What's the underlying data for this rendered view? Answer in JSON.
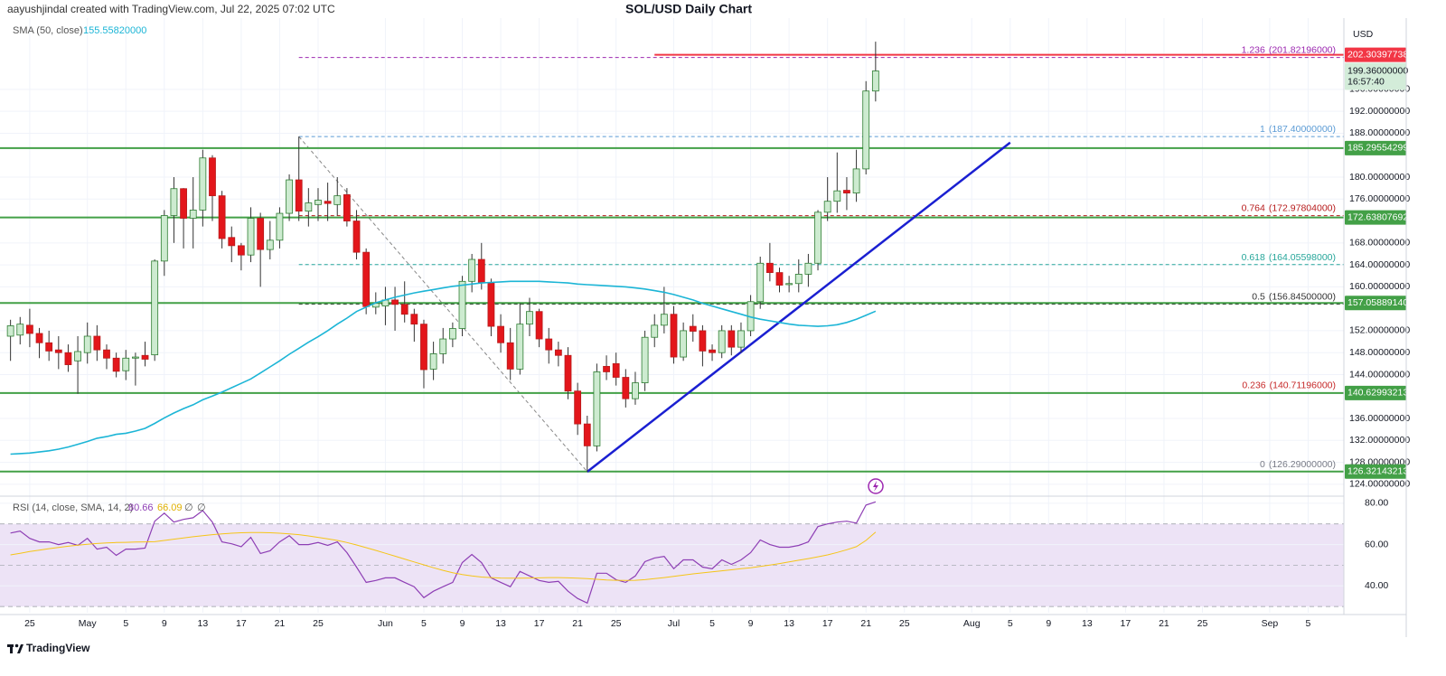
{
  "chart_data": [
    {
      "type": "candlestick",
      "title": "SOL/USD Daily Chart",
      "credit": "aayushjindal created with TradingView.com, Jul 22, 2025 07:02 UTC",
      "currency": "USD",
      "brand": "TradingView",
      "x": [
        "04-23",
        "04-24",
        "04-25",
        "04-26",
        "04-27",
        "04-28",
        "04-29",
        "04-30",
        "05-01",
        "05-02",
        "05-03",
        "05-04",
        "05-05",
        "05-06",
        "05-07",
        "05-08",
        "05-09",
        "05-10",
        "05-11",
        "05-12",
        "05-13",
        "05-14",
        "05-15",
        "05-16",
        "05-17",
        "05-18",
        "05-19",
        "05-20",
        "05-21",
        "05-22",
        "05-23",
        "05-24",
        "05-25",
        "05-26",
        "05-27",
        "05-28",
        "05-29",
        "05-30",
        "05-31",
        "06-01",
        "06-02",
        "06-03",
        "06-04",
        "06-05",
        "06-06",
        "06-07",
        "06-08",
        "06-09",
        "06-10",
        "06-11",
        "06-12",
        "06-13",
        "06-14",
        "06-15",
        "06-16",
        "06-17",
        "06-18",
        "06-19",
        "06-20",
        "06-21",
        "06-22",
        "06-23",
        "06-24",
        "06-25",
        "06-26",
        "06-27",
        "06-28",
        "06-29",
        "06-30",
        "07-01",
        "07-02",
        "07-03",
        "07-04",
        "07-05",
        "07-06",
        "07-07",
        "07-08",
        "07-09",
        "07-10",
        "07-11",
        "07-12",
        "07-13",
        "07-14",
        "07-15",
        "07-16",
        "07-17",
        "07-18",
        "07-19",
        "07-20",
        "07-21",
        "07-22"
      ],
      "open": [
        151.0,
        151.2,
        153.0,
        151.5,
        149.8,
        148.5,
        148.0,
        146.5,
        148.0,
        151.0,
        148.5,
        147.0,
        144.7,
        147.0,
        147.5,
        147.6,
        164.7,
        173.0,
        177.9,
        172.5,
        174.0,
        183.5,
        176.6,
        169.0,
        167.5,
        165.8,
        172.5,
        166.8,
        168.5,
        173.4,
        179.5,
        173.8,
        175.0,
        175.6,
        175.0,
        176.8,
        172.0,
        166.3,
        156.3,
        156.5,
        157.6,
        156.8,
        155.0,
        153.2,
        145.0,
        147.8,
        150.5,
        152.4,
        161.0,
        165.0,
        160.7,
        152.8,
        149.8,
        145.0,
        153.2,
        155.5,
        150.5,
        148.5,
        147.5,
        141.0,
        135.0,
        131.0,
        145.5,
        146.0,
        143.5,
        139.6,
        142.5,
        150.8,
        153.0,
        155.0,
        147.2,
        152.8,
        152.0,
        148.5,
        148.0,
        152.0,
        149.0,
        152.0,
        157.3,
        164.3,
        162.6,
        160.4,
        160.6,
        162.3,
        164.3,
        173.6,
        175.6,
        177.6,
        177.1,
        181.5,
        195.7
      ],
      "high": [
        154.0,
        154.5,
        156.0,
        152.5,
        152.0,
        151.0,
        149.5,
        151.0,
        153.5,
        153.0,
        149.5,
        148.0,
        148.5,
        148.0,
        150.0,
        165.0,
        174.0,
        180.0,
        178.0,
        180.0,
        185.0,
        184.0,
        177.5,
        171.0,
        168.0,
        174.5,
        173.5,
        172.0,
        174.5,
        180.5,
        187.4,
        178.0,
        178.0,
        179.0,
        180.0,
        178.0,
        174.0,
        167.0,
        159.0,
        160.0,
        160.0,
        161.0,
        156.0,
        154.0,
        150.0,
        152.5,
        153.5,
        162.0,
        166.0,
        168.0,
        161.5,
        155.0,
        152.5,
        157.0,
        158.0,
        156.0,
        152.5,
        150.0,
        149.0,
        142.5,
        136.5,
        146.0,
        147.5,
        148.0,
        145.0,
        144.5,
        152.0,
        155.0,
        160.0,
        156.5,
        153.5,
        155.0,
        153.0,
        149.5,
        153.0,
        153.0,
        153.5,
        158.5,
        165.5,
        168.0,
        163.5,
        162.0,
        165.0,
        166.0,
        174.0,
        180.0,
        184.5,
        180.0,
        185.0,
        197.5,
        204.7
      ],
      "low": [
        146.5,
        149.5,
        149.0,
        147.0,
        146.5,
        145.0,
        144.5,
        140.5,
        146.0,
        146.5,
        145.0,
        143.5,
        143.0,
        142.0,
        145.5,
        146.5,
        162.0,
        168.0,
        167.0,
        167.0,
        171.0,
        172.0,
        167.0,
        164.5,
        163.0,
        164.5,
        160.0,
        165.0,
        167.0,
        172.0,
        172.0,
        171.0,
        172.0,
        172.0,
        173.0,
        171.0,
        165.0,
        155.0,
        155.0,
        153.0,
        152.0,
        153.5,
        150.0,
        141.5,
        143.0,
        146.0,
        149.0,
        151.0,
        159.0,
        159.5,
        151.0,
        148.0,
        143.0,
        144.0,
        151.0,
        149.0,
        146.0,
        145.5,
        139.5,
        133.0,
        126.29,
        130.0,
        143.0,
        142.0,
        138.0,
        138.5,
        141.0,
        149.0,
        151.5,
        146.0,
        146.5,
        150.0,
        145.5,
        146.5,
        147.0,
        147.5,
        148.0,
        151.0,
        156.0,
        161.0,
        159.0,
        159.0,
        159.0,
        160.0,
        163.0,
        172.0,
        173.5,
        174.0,
        175.5,
        180.5,
        193.8
      ],
      "close": [
        152.9,
        153.2,
        151.5,
        149.8,
        148.3,
        148.0,
        145.8,
        148.2,
        151.0,
        148.5,
        147.0,
        144.6,
        147.0,
        147.2,
        146.8,
        164.7,
        173.0,
        177.9,
        172.5,
        174.0,
        183.5,
        176.6,
        168.8,
        167.5,
        165.8,
        172.5,
        166.8,
        168.5,
        173.4,
        179.5,
        173.8,
        175.3,
        175.8,
        175.2,
        176.6,
        172.0,
        166.3,
        156.4,
        157.0,
        157.6,
        156.8,
        155.0,
        153.2,
        144.9,
        147.8,
        150.5,
        152.4,
        161.0,
        165.0,
        160.7,
        152.8,
        149.8,
        145.0,
        153.2,
        155.5,
        150.5,
        148.5,
        147.5,
        141.0,
        135.0,
        131.0,
        144.5,
        144.5,
        143.5,
        139.6,
        142.5,
        150.8,
        153.0,
        155.0,
        147.2,
        152.0,
        151.9,
        148.3,
        148.0,
        152.0,
        149.0,
        152.0,
        157.3,
        164.3,
        162.6,
        160.3,
        160.6,
        162.3,
        164.3,
        173.6,
        175.6,
        177.5,
        177.1,
        181.5,
        195.7,
        199.36
      ],
      "up_color": "#cdebd0",
      "up_border": "#2e7d32",
      "down_color": "#e3161b",
      "down_border": "#b71c1c",
      "wick_color": "#333333",
      "sma": {
        "name": "SMA (50, close)",
        "last_label": "155.55820000",
        "color": "#1cb5d6",
        "values": [
          129.5,
          129.6,
          129.7,
          129.9,
          130.1,
          130.4,
          130.8,
          131.3,
          131.8,
          132.4,
          132.7,
          133.1,
          133.3,
          133.7,
          134.2,
          135.1,
          136.1,
          137.0,
          137.8,
          138.5,
          139.4,
          140.1,
          140.8,
          141.6,
          142.4,
          143.2,
          144.3,
          145.4,
          146.5,
          147.7,
          148.8,
          149.9,
          150.9,
          152.0,
          153.2,
          154.3,
          155.5,
          156.3,
          157.1,
          157.6,
          158.1,
          158.5,
          158.9,
          159.2,
          159.5,
          159.8,
          160.1,
          160.3,
          160.5,
          160.7,
          160.8,
          160.9,
          161.0,
          161.0,
          161.0,
          161.0,
          160.9,
          160.8,
          160.7,
          160.5,
          160.4,
          160.3,
          160.2,
          160.1,
          160.0,
          159.8,
          159.6,
          159.3,
          159.0,
          158.6,
          158.1,
          157.6,
          157.0,
          156.5,
          156.0,
          155.5,
          155.0,
          154.5,
          154.1,
          153.8,
          153.5,
          153.2,
          153.0,
          152.9,
          152.8,
          152.9,
          153.1,
          153.5,
          154.1,
          154.8,
          155.5582
        ]
      },
      "xlim": [
        "04-22",
        "09-09"
      ],
      "xticks": [
        {
          "value": "04-25",
          "label": "25"
        },
        {
          "value": "05-01",
          "label": "May"
        },
        {
          "value": "05-05",
          "label": "5"
        },
        {
          "value": "05-09",
          "label": "9"
        },
        {
          "value": "05-13",
          "label": "13"
        },
        {
          "value": "05-17",
          "label": "17"
        },
        {
          "value": "05-21",
          "label": "21"
        },
        {
          "value": "05-25",
          "label": "25"
        },
        {
          "value": "06-01",
          "label": "Jun"
        },
        {
          "value": "06-05",
          "label": "5"
        },
        {
          "value": "06-09",
          "label": "9"
        },
        {
          "value": "06-13",
          "label": "13"
        },
        {
          "value": "06-17",
          "label": "17"
        },
        {
          "value": "06-21",
          "label": "21"
        },
        {
          "value": "06-25",
          "label": "25"
        },
        {
          "value": "07-01",
          "label": "Jul"
        },
        {
          "value": "07-05",
          "label": "5"
        },
        {
          "value": "07-09",
          "label": "9"
        },
        {
          "value": "07-13",
          "label": "13"
        },
        {
          "value": "07-17",
          "label": "17"
        },
        {
          "value": "07-21",
          "label": "21"
        },
        {
          "value": "07-25",
          "label": "25"
        },
        {
          "value": "08-01",
          "label": "Aug"
        },
        {
          "value": "08-05",
          "label": "5"
        },
        {
          "value": "08-09",
          "label": "9"
        },
        {
          "value": "08-13",
          "label": "13"
        },
        {
          "value": "08-17",
          "label": "17"
        },
        {
          "value": "08-21",
          "label": "21"
        },
        {
          "value": "08-25",
          "label": "25"
        },
        {
          "value": "09-01",
          "label": "Sep"
        },
        {
          "value": "09-05",
          "label": "5"
        }
      ],
      "ylim": [
        122,
        209
      ],
      "yticks": [
        {
          "value": 124,
          "label": "124.00000000"
        },
        {
          "value": 128,
          "label": "128.00000000"
        },
        {
          "value": 132,
          "label": "132.00000000"
        },
        {
          "value": 136,
          "label": "136.00000000"
        },
        {
          "value": 144,
          "label": "144.00000000"
        },
        {
          "value": 148,
          "label": "148.00000000"
        },
        {
          "value": 152,
          "label": "152.00000000"
        },
        {
          "value": 160,
          "label": "160.00000000"
        },
        {
          "value": 164,
          "label": "164.00000000"
        },
        {
          "value": 168,
          "label": "168.00000000"
        },
        {
          "value": 176,
          "label": "176.00000000"
        },
        {
          "value": 180,
          "label": "180.00000000"
        },
        {
          "value": 188,
          "label": "188.00000000"
        },
        {
          "value": 192,
          "label": "192.00000000"
        },
        {
          "value": 196,
          "label": "196.00000000"
        }
      ],
      "grid": true,
      "supports": {
        "values": [
          185.29554299,
          172.63807692,
          157.0588914,
          140.62993213,
          126.32143213
        ],
        "value_labels": [
          "185.29554299",
          "172.63807692",
          "157.05889140",
          "140.62993213",
          "126.32143213"
        ],
        "color": "#43a047"
      },
      "resistance": {
        "value": 202.30397738,
        "label": "202.30397738",
        "start": "06-29",
        "color": "#f23645"
      },
      "price": {
        "value": 199.36,
        "label": "199.36000000",
        "countdown": "16:57:40",
        "color": "#d3ecd9"
      },
      "fib": {
        "start": "05-23",
        "ratios": [
          "1.236",
          "1",
          "0.764",
          "0.618",
          "0.5",
          "0.236",
          "0"
        ],
        "values": [
          201.82196,
          187.4,
          172.97804,
          164.05598,
          156.845,
          140.71196,
          126.29
        ],
        "value_labels": [
          "(201.82196000)",
          "(187.40000000)",
          "(172.97804000)",
          "(164.05598000)",
          "(156.84500000)",
          "(140.71196000)",
          "(126.29000000)"
        ],
        "colors": [
          "#9c27b0",
          "#5b9bd5",
          "#b71c1c",
          "#26a69a",
          "#333333",
          "#c62828",
          "#787b86"
        ]
      },
      "swing": {
        "x": [
          "05-23",
          "06-22"
        ],
        "y": [
          187.4,
          126.29
        ],
        "color": "#888888"
      },
      "trendline": {
        "x": [
          "06-22",
          "08-05"
        ],
        "y": [
          126.29,
          186.3
        ],
        "color": "#1a1fd1"
      }
    },
    {
      "type": "line",
      "title": "RSI (14, close, SMA, 14, 2)",
      "empty_labels": [
        "∅",
        "∅"
      ],
      "series": [
        {
          "color": "#8e3fb5",
          "values": [
            65.6,
            66.5,
            63.0,
            61.3,
            61.3,
            60.0,
            61.0,
            59.6,
            63.0,
            57.8,
            58.7,
            54.8,
            57.8,
            57.8,
            58.3,
            71.3,
            75.2,
            70.9,
            72.2,
            73.0,
            76.5,
            70.9,
            61.3,
            60.4,
            59.0,
            63.5,
            55.7,
            57.0,
            61.3,
            64.3,
            60.0,
            60.0,
            61.0,
            59.6,
            61.3,
            56.1,
            49.1,
            41.7,
            42.6,
            43.9,
            43.9,
            41.7,
            39.6,
            34.3,
            37.4,
            39.6,
            41.7,
            51.3,
            55.2,
            51.3,
            43.9,
            41.7,
            39.6,
            47.0,
            44.8,
            42.6,
            41.7,
            42.2,
            37.4,
            33.9,
            31.7,
            46.1,
            46.1,
            43.0,
            41.7,
            44.8,
            51.7,
            53.5,
            54.3,
            48.3,
            52.6,
            52.6,
            49.1,
            48.3,
            52.6,
            50.4,
            52.6,
            56.1,
            62.2,
            60.0,
            58.7,
            58.7,
            59.6,
            61.3,
            68.7,
            70.0,
            70.9,
            71.3,
            70.4,
            79.1,
            80.66
          ]
        },
        {
          "color": "#f5c518",
          "values": [
            55.0,
            55.8,
            56.6,
            57.3,
            58.0,
            58.6,
            59.2,
            59.7,
            60.1,
            60.5,
            60.8,
            61.0,
            61.1,
            61.2,
            61.3,
            61.4,
            62.0,
            62.6,
            63.2,
            63.8,
            64.3,
            64.8,
            65.2,
            65.5,
            65.7,
            65.8,
            65.8,
            65.7,
            65.5,
            65.2,
            64.8,
            64.2,
            63.5,
            62.8,
            62.0,
            61.0,
            59.8,
            58.5,
            57.2,
            55.8,
            54.4,
            53.0,
            51.6,
            50.2,
            48.8,
            47.5,
            46.4,
            45.5,
            44.8,
            44.3,
            44.0,
            43.8,
            43.7,
            43.7,
            43.8,
            43.9,
            44.0,
            44.0,
            43.9,
            43.7,
            43.5,
            43.2,
            42.9,
            42.7,
            42.6,
            42.7,
            43.0,
            43.5,
            44.0,
            44.6,
            45.2,
            45.8,
            46.3,
            46.8,
            47.3,
            47.8,
            48.3,
            48.8,
            49.4,
            50.1,
            50.8,
            51.6,
            52.4,
            53.2,
            54.1,
            55.0,
            56.2,
            57.5,
            59.0,
            62.0,
            66.09
          ]
        }
      ],
      "ylim": [
        27,
        83
      ],
      "yticks": [
        {
          "value": 40,
          "label": "40.00"
        },
        {
          "value": 60,
          "label": "60.00"
        },
        {
          "value": 80,
          "label": "80.00"
        }
      ],
      "band": [
        30,
        70
      ],
      "midline": 50,
      "band_color": "#ede3f6"
    }
  ]
}
